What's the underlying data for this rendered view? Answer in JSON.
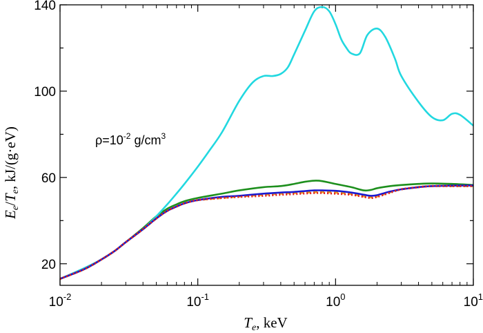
{
  "chart_data": {
    "type": "line",
    "title": "",
    "annotation": {
      "prefix": "ρ=10",
      "exp": "-2",
      "mid": " g/cm",
      "unit_exp": "3"
    },
    "xlabel": {
      "var": "T",
      "sub": "e",
      "rest": ", keV"
    },
    "ylabel": {
      "var1": "E",
      "sub1": "e",
      "slash": "/",
      "var2": "T",
      "sub2": "e",
      "rest": ", kJ/(g·eV)"
    },
    "xscale": "log",
    "xlim": [
      0.01,
      10
    ],
    "ylim": [
      10,
      140
    ],
    "x_ticks": [
      {
        "value": 0.01,
        "base": "10",
        "exp": "-2"
      },
      {
        "value": 0.1,
        "base": "10",
        "exp": "-1"
      },
      {
        "value": 1,
        "base": "10",
        "exp": "0"
      },
      {
        "value": 10,
        "base": "10",
        "exp": "1"
      }
    ],
    "y_ticks": [
      {
        "value": 20,
        "label": "20"
      },
      {
        "value": 60,
        "label": "60"
      },
      {
        "value": 100,
        "label": "100"
      },
      {
        "value": 140,
        "label": "140"
      }
    ],
    "legend": "none",
    "series": [
      {
        "name": "cyan",
        "color": "#22d8e0",
        "style": "solid",
        "x": [
          0.01,
          0.015,
          0.02,
          0.025,
          0.03,
          0.04,
          0.05,
          0.06,
          0.07,
          0.08,
          0.1,
          0.12,
          0.15,
          0.2,
          0.25,
          0.3,
          0.35,
          0.4,
          0.45,
          0.5,
          0.6,
          0.7,
          0.8,
          0.9,
          1.0,
          1.1,
          1.2,
          1.3,
          1.5,
          1.7,
          2.0,
          2.3,
          2.7,
          3.0,
          4.0,
          5.0,
          6.0,
          7.0,
          8.0,
          10.0
        ],
        "y": [
          13,
          18,
          22,
          26,
          30,
          36,
          42,
          47.5,
          52.5,
          57,
          65,
          72,
          81,
          95.5,
          104,
          107,
          107,
          108,
          111,
          117,
          128,
          137,
          139,
          137,
          131,
          124,
          120,
          117.5,
          117.5,
          126,
          129,
          125,
          115,
          107,
          95,
          88,
          86.5,
          89.5,
          89,
          84
        ]
      },
      {
        "name": "green",
        "color": "#1d8f1d",
        "style": "solid",
        "x": [
          0.01,
          0.015,
          0.02,
          0.025,
          0.03,
          0.04,
          0.05,
          0.06,
          0.07,
          0.08,
          0.1,
          0.15,
          0.2,
          0.3,
          0.4,
          0.5,
          0.6,
          0.7,
          0.8,
          1.0,
          1.3,
          1.6,
          1.8,
          2.0,
          2.5,
          3.0,
          4.0,
          5.0,
          7.0,
          10.0
        ],
        "y": [
          13,
          17.5,
          22,
          26,
          30,
          36.5,
          42,
          45.5,
          47.5,
          49,
          50.5,
          52.5,
          54,
          55.5,
          56,
          57,
          58,
          58.5,
          58.3,
          57,
          55.5,
          54,
          54.2,
          55,
          56,
          56.5,
          57,
          57.2,
          57,
          56.5
        ]
      },
      {
        "name": "blue",
        "color": "#1a1ad0",
        "style": "solid",
        "x": [
          0.01,
          0.015,
          0.02,
          0.025,
          0.03,
          0.04,
          0.05,
          0.06,
          0.07,
          0.08,
          0.1,
          0.15,
          0.2,
          0.3,
          0.4,
          0.5,
          0.6,
          0.7,
          0.8,
          1.0,
          1.3,
          1.6,
          1.8,
          2.0,
          2.5,
          3.0,
          4.0,
          5.0,
          7.0,
          10.0
        ],
        "y": [
          13,
          17.5,
          22,
          26,
          30,
          36,
          41,
          44.5,
          46.5,
          48,
          49.5,
          51,
          51.5,
          52.5,
          53,
          53.3,
          53.7,
          54,
          54,
          53.8,
          53,
          52,
          51.5,
          51.8,
          53.5,
          54.5,
          55.5,
          56,
          56.2,
          56.3
        ]
      },
      {
        "name": "red-dotted",
        "color": "#e02020",
        "style": "dotted",
        "x": [
          0.01,
          0.015,
          0.02,
          0.025,
          0.03,
          0.04,
          0.05,
          0.06,
          0.07,
          0.08,
          0.1,
          0.15,
          0.2,
          0.3,
          0.4,
          0.5,
          0.6,
          0.7,
          0.8,
          1.0,
          1.3,
          1.6,
          1.8,
          2.0,
          2.5,
          3.0,
          4.0,
          5.0,
          7.0,
          10.0
        ],
        "y": [
          13,
          17.5,
          22,
          26,
          30,
          36,
          41,
          44.5,
          46.5,
          48,
          49.5,
          50.5,
          51,
          51.5,
          52,
          52.3,
          52.6,
          52.8,
          52.8,
          52.5,
          52,
          51,
          50.5,
          51,
          53,
          54.5,
          55.5,
          56,
          56,
          56
        ]
      },
      {
        "name": "orange-dashed",
        "color": "#f0a020",
        "style": "dashed",
        "x": [
          0.01,
          0.015,
          0.02,
          0.025,
          0.03,
          0.04,
          0.05,
          0.06,
          0.07,
          0.08,
          0.1,
          0.15,
          0.2,
          0.3,
          0.4,
          0.5,
          0.6,
          0.7,
          0.8,
          1.0,
          1.3,
          1.6,
          1.8,
          2.0,
          2.5,
          3.0,
          4.0,
          5.0,
          7.0,
          10.0
        ],
        "y": [
          13,
          17.5,
          22,
          26,
          30,
          36,
          41,
          44.5,
          46.5,
          48,
          49.5,
          50.5,
          51.2,
          52,
          52.5,
          52.8,
          53,
          53.2,
          53.2,
          53,
          52.3,
          51.3,
          50.8,
          51.2,
          53.2,
          54.5,
          55.5,
          56,
          56,
          56
        ]
      }
    ]
  }
}
